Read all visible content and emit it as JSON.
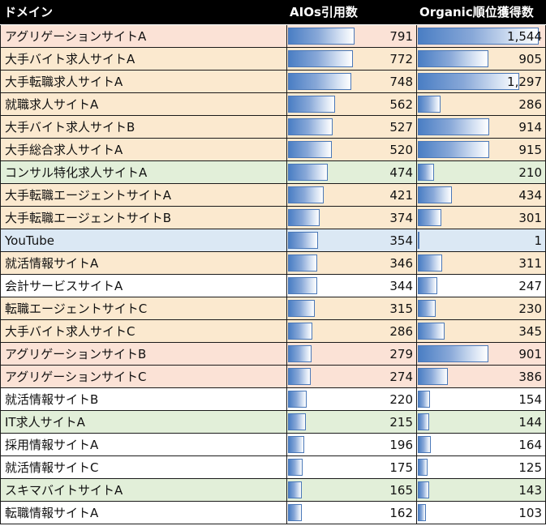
{
  "colors": {
    "header_bg": "#000000",
    "header_text": "#ffffff",
    "orange": "#fbe9cf",
    "pink": "#fbe2d6",
    "green": "#e2efd9",
    "blue": "#dbe8f4",
    "white": "#ffffff",
    "bar": "#4a7ec4"
  },
  "chart_data": {
    "type": "table",
    "columns": [
      "ドメイン",
      "AIOs引用数",
      "Organic順位獲得数"
    ],
    "aios_max": 791,
    "organic_max": 1544,
    "rows": [
      {
        "domain": "アグリゲーションサイトA",
        "aios": "791",
        "organic": "1,544",
        "aios_value": 791,
        "organic_value": 1544,
        "color": "pink"
      },
      {
        "domain": "大手バイト求人サイトA",
        "aios": "772",
        "organic": "905",
        "aios_value": 772,
        "organic_value": 905,
        "color": "orange"
      },
      {
        "domain": "大手転職求人サイトA",
        "aios": "748",
        "organic": "1,297",
        "aios_value": 748,
        "organic_value": 1297,
        "color": "orange"
      },
      {
        "domain": "就職求人サイトA",
        "aios": "562",
        "organic": "286",
        "aios_value": 562,
        "organic_value": 286,
        "color": "orange"
      },
      {
        "domain": "大手バイト求人サイトB",
        "aios": "527",
        "organic": "914",
        "aios_value": 527,
        "organic_value": 914,
        "color": "orange"
      },
      {
        "domain": "大手総合求人サイトA",
        "aios": "520",
        "organic": "915",
        "aios_value": 520,
        "organic_value": 915,
        "color": "orange"
      },
      {
        "domain": "コンサル特化求人サイトA",
        "aios": "474",
        "organic": "210",
        "aios_value": 474,
        "organic_value": 210,
        "color": "green"
      },
      {
        "domain": "大手転職エージェントサイトA",
        "aios": "421",
        "organic": "434",
        "aios_value": 421,
        "organic_value": 434,
        "color": "orange"
      },
      {
        "domain": "大手転職エージェントサイトB",
        "aios": "374",
        "organic": "301",
        "aios_value": 374,
        "organic_value": 301,
        "color": "orange"
      },
      {
        "domain": "YouTube",
        "aios": "354",
        "organic": "1",
        "aios_value": 354,
        "organic_value": 1,
        "color": "blue"
      },
      {
        "domain": "就活情報サイトA",
        "aios": "346",
        "organic": "311",
        "aios_value": 346,
        "organic_value": 311,
        "color": "orange"
      },
      {
        "domain": "会計サービスサイトA",
        "aios": "344",
        "organic": "247",
        "aios_value": 344,
        "organic_value": 247,
        "color": "white"
      },
      {
        "domain": "転職エージェントサイトC",
        "aios": "315",
        "organic": "230",
        "aios_value": 315,
        "organic_value": 230,
        "color": "orange"
      },
      {
        "domain": "大手バイト求人サイトC",
        "aios": "286",
        "organic": "345",
        "aios_value": 286,
        "organic_value": 345,
        "color": "orange"
      },
      {
        "domain": "アグリゲーションサイトB",
        "aios": "279",
        "organic": "901",
        "aios_value": 279,
        "organic_value": 901,
        "color": "pink"
      },
      {
        "domain": "アグリゲーションサイトC",
        "aios": "274",
        "organic": "386",
        "aios_value": 274,
        "organic_value": 386,
        "color": "pink"
      },
      {
        "domain": "就活情報サイトB",
        "aios": "220",
        "organic": "154",
        "aios_value": 220,
        "organic_value": 154,
        "color": "white"
      },
      {
        "domain": "IT求人サイトA",
        "aios": "215",
        "organic": "144",
        "aios_value": 215,
        "organic_value": 144,
        "color": "green"
      },
      {
        "domain": "採用情報サイトA",
        "aios": "196",
        "organic": "164",
        "aios_value": 196,
        "organic_value": 164,
        "color": "white"
      },
      {
        "domain": "就活情報サイトC",
        "aios": "175",
        "organic": "125",
        "aios_value": 175,
        "organic_value": 125,
        "color": "white"
      },
      {
        "domain": "スキマバイトサイトA",
        "aios": "165",
        "organic": "143",
        "aios_value": 165,
        "organic_value": 143,
        "color": "green"
      },
      {
        "domain": "転職情報サイトA",
        "aios": "162",
        "organic": "103",
        "aios_value": 162,
        "organic_value": 103,
        "color": "white"
      }
    ]
  }
}
